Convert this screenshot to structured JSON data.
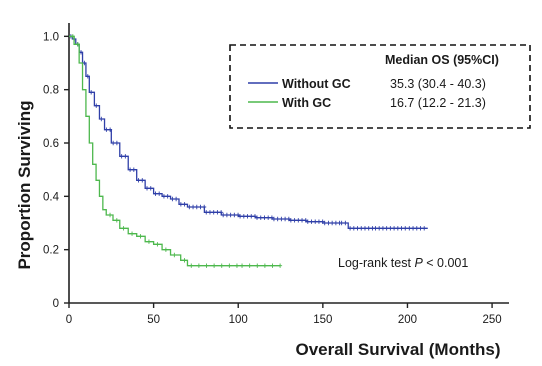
{
  "chart_data": {
    "type": "line",
    "xlabel": "Overall Survival (Months)",
    "ylabel": "Proportion Surviving",
    "xlim": [
      0,
      260
    ],
    "ylim": [
      0,
      1.05
    ],
    "x_ticks": [
      0,
      50,
      100,
      150,
      200,
      250
    ],
    "y_ticks": [
      0,
      0.2,
      0.4,
      0.6,
      0.8,
      1.0
    ],
    "x_tick_labels": [
      "0",
      "50",
      "100",
      "150",
      "200",
      "250"
    ],
    "y_tick_labels": [
      "0",
      "0.2",
      "0.4",
      "0.6",
      "0.8",
      "1.0"
    ],
    "grid": false,
    "legend": {
      "position": "top-right",
      "style": "dashed-box",
      "header": "Median OS (95%CI)"
    },
    "series": [
      {
        "name": "Without GC",
        "median_os": "35.3 (30.4 - 40.3)",
        "color": "#2f3fa8",
        "marker": "plus",
        "points": [
          [
            0,
            1.0
          ],
          [
            2,
            0.99
          ],
          [
            4,
            0.97
          ],
          [
            6,
            0.94
          ],
          [
            8,
            0.9
          ],
          [
            10,
            0.85
          ],
          [
            12,
            0.79
          ],
          [
            15,
            0.74
          ],
          [
            18,
            0.69
          ],
          [
            21,
            0.65
          ],
          [
            25,
            0.6
          ],
          [
            30,
            0.55
          ],
          [
            35,
            0.5
          ],
          [
            40,
            0.46
          ],
          [
            45,
            0.43
          ],
          [
            50,
            0.41
          ],
          [
            55,
            0.4
          ],
          [
            60,
            0.39
          ],
          [
            65,
            0.37
          ],
          [
            70,
            0.36
          ],
          [
            80,
            0.34
          ],
          [
            90,
            0.33
          ],
          [
            100,
            0.325
          ],
          [
            110,
            0.32
          ],
          [
            120,
            0.315
          ],
          [
            130,
            0.31
          ],
          [
            140,
            0.305
          ],
          [
            150,
            0.3
          ],
          [
            160,
            0.3
          ],
          [
            165,
            0.28
          ],
          [
            180,
            0.28
          ],
          [
            200,
            0.28
          ],
          [
            212,
            0.28
          ]
        ]
      },
      {
        "name": "With GC",
        "median_os": "16.7 (12.2 - 21.3)",
        "color": "#4db84d",
        "marker": "plus",
        "points": [
          [
            0,
            1.0
          ],
          [
            3,
            0.97
          ],
          [
            6,
            0.9
          ],
          [
            8,
            0.8
          ],
          [
            10,
            0.7
          ],
          [
            12,
            0.6
          ],
          [
            14,
            0.52
          ],
          [
            16,
            0.46
          ],
          [
            18,
            0.4
          ],
          [
            20,
            0.35
          ],
          [
            22,
            0.33
          ],
          [
            26,
            0.31
          ],
          [
            30,
            0.28
          ],
          [
            35,
            0.26
          ],
          [
            40,
            0.25
          ],
          [
            45,
            0.23
          ],
          [
            50,
            0.22
          ],
          [
            55,
            0.2
          ],
          [
            60,
            0.18
          ],
          [
            66,
            0.16
          ],
          [
            70,
            0.14
          ],
          [
            100,
            0.14
          ],
          [
            125,
            0.14
          ]
        ]
      }
    ],
    "annotation": {
      "text": "Log-rank test ",
      "p_symbol": "P",
      "p_value": " < 0.001"
    }
  }
}
